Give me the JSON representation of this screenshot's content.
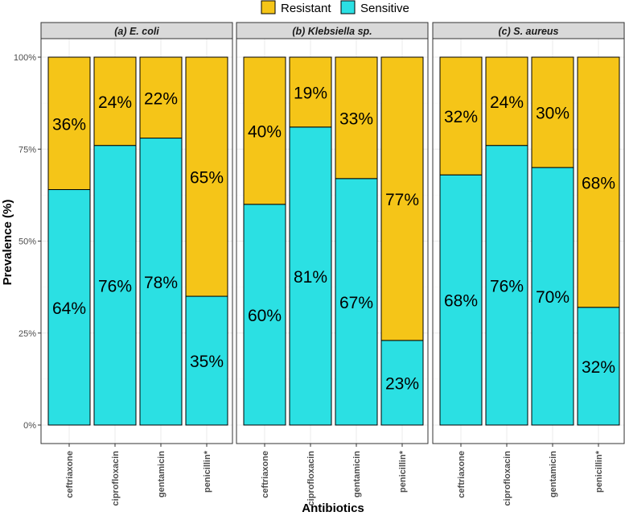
{
  "chart_data": {
    "type": "bar",
    "stacked": true,
    "xlabel": "Antibiotics",
    "ylabel": "Prevalence (%)",
    "ylim": [
      0,
      100
    ],
    "y_ticks": [
      "0%",
      "25%",
      "50%",
      "75%",
      "100%"
    ],
    "y_tick_values": [
      0,
      25,
      50,
      75,
      100
    ],
    "legend": {
      "position": "top",
      "entries": [
        {
          "name": "Resistant",
          "color": "#F5C518"
        },
        {
          "name": "Sensitive",
          "color": "#2BE0E3"
        }
      ]
    },
    "grid": true,
    "categories": [
      "ceftriaxone",
      "ciprofloxacin",
      "gentamicin",
      "penicillin*"
    ],
    "panels": [
      {
        "title": "(a) E. coli",
        "series": [
          {
            "name": "Sensitive",
            "values": [
              64,
              76,
              78,
              35
            ],
            "labels": [
              "64%",
              "76%",
              "78%",
              "35%"
            ]
          },
          {
            "name": "Resistant",
            "values": [
              36,
              24,
              22,
              65
            ],
            "labels": [
              "36%",
              "24%",
              "22%",
              "65%"
            ]
          }
        ]
      },
      {
        "title": "(b) Klebsiella sp.",
        "series": [
          {
            "name": "Sensitive",
            "values": [
              60,
              81,
              67,
              23
            ],
            "labels": [
              "60%",
              "81%",
              "67%",
              "23%"
            ]
          },
          {
            "name": "Resistant",
            "values": [
              40,
              19,
              33,
              77
            ],
            "labels": [
              "40%",
              "19%",
              "33%",
              "77%"
            ]
          }
        ]
      },
      {
        "title": "(c) S. aureus",
        "series": [
          {
            "name": "Sensitive",
            "values": [
              68,
              76,
              70,
              32
            ],
            "labels": [
              "68%",
              "76%",
              "70%",
              "32%"
            ]
          },
          {
            "name": "Resistant",
            "values": [
              32,
              24,
              30,
              68
            ],
            "labels": [
              "32%",
              "24%",
              "30%",
              "68%"
            ]
          }
        ]
      }
    ]
  }
}
